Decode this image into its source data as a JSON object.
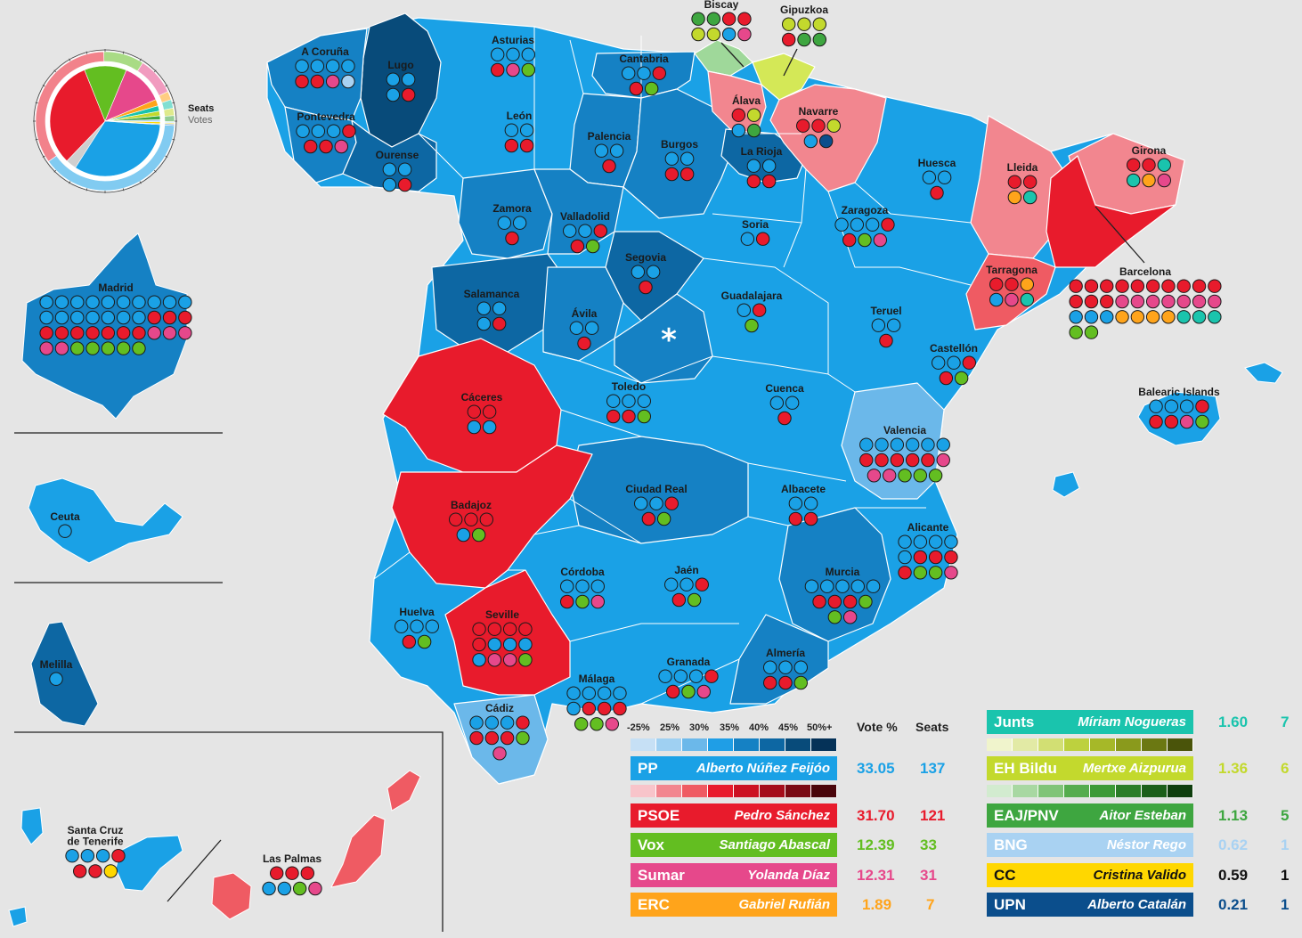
{
  "legend_text": {
    "seats": "Seats",
    "votes": "Votes",
    "vote_pct": "Vote %",
    "seats_col": "Seats",
    "asterisk": "*"
  },
  "scale_labels": [
    "-25%",
    "25%",
    "30%",
    "35%",
    "40%",
    "45%",
    "50%+"
  ],
  "colors": {
    "pp_scale": [
      "#c6e0f5",
      "#9fd0f2",
      "#6bb8ea",
      "#1f9ee6",
      "#1581c4",
      "#0d67a3",
      "#084b7a",
      "#053258"
    ],
    "psoe_scale": [
      "#f8c4ca",
      "#f2868f",
      "#ef5b63",
      "#e81b2c",
      "#cc1122",
      "#a50d1b",
      "#7a0a14",
      "#4a050b"
    ],
    "junts_scale": [
      "#f0f4cc",
      "#e2eaa5",
      "#d2df73",
      "#bdd13e",
      "#a6b828",
      "#8a9a1c",
      "#6b7812",
      "#4a540a"
    ],
    "bildu_scale": [
      "#d2ebcf",
      "#a8d8a2",
      "#80c478",
      "#55ac4e",
      "#3c9a37",
      "#2b7d28",
      "#1c5f1a",
      "#0f3e0e"
    ]
  },
  "parties": [
    {
      "abbr": "PP",
      "leader": "Alberto Núñez Feijóo",
      "vote": "33.05",
      "seats": "137",
      "color": "#1aa1e6",
      "numcolor": "#1aa1e6"
    },
    {
      "abbr": "PSOE",
      "leader": "Pedro Sánchez",
      "vote": "31.70",
      "seats": "121",
      "color": "#e81b2c",
      "numcolor": "#e81b2c"
    },
    {
      "abbr": "Vox",
      "leader": "Santiago Abascal",
      "vote": "12.39",
      "seats": "33",
      "color": "#63be21",
      "numcolor": "#63be21"
    },
    {
      "abbr": "Sumar",
      "leader": "Yolanda Díaz",
      "vote": "12.31",
      "seats": "31",
      "color": "#e6488b",
      "numcolor": "#e6488b"
    },
    {
      "abbr": "ERC",
      "leader": "Gabriel Rufián",
      "vote": "1.89",
      "seats": "7",
      "color": "#ffa41b",
      "numcolor": "#ffa41b"
    },
    {
      "abbr": "Junts",
      "leader": "Míriam Nogueras",
      "vote": "1.60",
      "seats": "7",
      "color": "#1ac4ad",
      "numcolor": "#1ac4ad"
    },
    {
      "abbr": "EH Bildu",
      "leader": "Mertxe Aizpurua",
      "vote": "1.36",
      "seats": "6",
      "color": "#c3d92d",
      "numcolor": "#c3d92d"
    },
    {
      "abbr": "EAJ/PNV",
      "leader": "Aitor Esteban",
      "vote": "1.13",
      "seats": "5",
      "color": "#3ea640",
      "numcolor": "#3ea640"
    },
    {
      "abbr": "BNG",
      "leader": "Néstor Rego",
      "vote": "0.62",
      "seats": "1",
      "color": "#a9d2f2",
      "numcolor": "#a9d2f2"
    },
    {
      "abbr": "CC",
      "leader": "Cristina Valido",
      "vote": "0.59",
      "seats": "1",
      "color": "#ffd700",
      "numcolor": "#111111"
    },
    {
      "abbr": "UPN",
      "leader": "Alberto Catalán",
      "vote": "0.21",
      "seats": "1",
      "color": "#0b4e8c",
      "numcolor": "#0b4e8c"
    }
  ],
  "seat_colors": {
    "PP": "#1aa1e6",
    "PSOE": "#e81b2c",
    "Vox": "#63be21",
    "Sumar": "#e6488b",
    "ERC": "#ffa41b",
    "Junts": "#1ac4ad",
    "Bildu": "#c3d92d",
    "PNV": "#3ea640",
    "BNG": "#a9d2f2",
    "CC": "#ffd700",
    "UPN": "#0b4e8c"
  },
  "provinces": [
    {
      "name": "A Coruña",
      "rows": [
        [
          "PP",
          "PP",
          "PP",
          "PP"
        ],
        [
          "PSOE",
          "PSOE",
          "Sumar",
          "BNG"
        ]
      ]
    },
    {
      "name": "Lugo",
      "rows": [
        [
          "PP",
          "PP"
        ],
        [
          "PP",
          "PSOE"
        ]
      ]
    },
    {
      "name": "Pontevedra",
      "rows": [
        [
          "PP",
          "PP",
          "PP",
          "PSOE"
        ],
        [
          "PSOE",
          "PSOE",
          "Sumar"
        ]
      ]
    },
    {
      "name": "Ourense",
      "rows": [
        [
          "PP",
          "PP"
        ],
        [
          "PP",
          "PSOE"
        ]
      ]
    },
    {
      "name": "Asturias",
      "rows": [
        [
          "PP",
          "PP",
          "PP"
        ],
        [
          "PSOE",
          "Sumar",
          "Vox"
        ]
      ]
    },
    {
      "name": "Cantabria",
      "rows": [
        [
          "PP",
          "PP",
          "PSOE"
        ],
        [
          "PSOE",
          "Vox"
        ]
      ]
    },
    {
      "name": "León",
      "rows": [
        [
          "PP",
          "PP"
        ],
        [
          "PSOE",
          "PSOE"
        ]
      ]
    },
    {
      "name": "Palencia",
      "rows": [
        [
          "PP",
          "PP"
        ],
        [
          "PSOE"
        ]
      ]
    },
    {
      "name": "Burgos",
      "rows": [
        [
          "PP",
          "PP"
        ],
        [
          "PSOE",
          "PSOE"
        ]
      ]
    },
    {
      "name": "La Rioja",
      "rows": [
        [
          "PP",
          "PP"
        ],
        [
          "PSOE",
          "PSOE"
        ]
      ]
    },
    {
      "name": "Zamora",
      "rows": [
        [
          "PP",
          "PP"
        ],
        [
          "PSOE"
        ]
      ]
    },
    {
      "name": "Valladolid",
      "rows": [
        [
          "PP",
          "PP",
          "PSOE"
        ],
        [
          "PSOE",
          "Vox"
        ]
      ]
    },
    {
      "name": "Soria",
      "rows": [
        [
          "PP",
          "PSOE"
        ]
      ]
    },
    {
      "name": "Segovia",
      "rows": [
        [
          "PP",
          "PP"
        ],
        [
          "PSOE"
        ]
      ]
    },
    {
      "name": "Salamanca",
      "rows": [
        [
          "PP",
          "PP"
        ],
        [
          "PP",
          "PSOE"
        ]
      ]
    },
    {
      "name": "Ávila",
      "rows": [
        [
          "PP",
          "PP"
        ],
        [
          "PSOE"
        ]
      ]
    },
    {
      "name": "Madrid",
      "rows": [
        [
          "PP",
          "PP",
          "PP",
          "PP",
          "PP",
          "PP",
          "PP",
          "PP",
          "PP",
          "PP"
        ],
        [
          "PP",
          "PP",
          "PP",
          "PP",
          "PP",
          "PP",
          "PP",
          "PSOE",
          "PSOE",
          "PSOE"
        ],
        [
          "PSOE",
          "PSOE",
          "PSOE",
          "PSOE",
          "PSOE",
          "PSOE",
          "PSOE",
          "Sumar",
          "Sumar",
          "Sumar"
        ],
        [
          "Sumar",
          "Sumar",
          "Vox",
          "Vox",
          "Vox",
          "Vox",
          "Vox"
        ]
      ]
    },
    {
      "name": "Guadalajara",
      "rows": [
        [
          "PP",
          "PSOE"
        ],
        [
          "Vox"
        ]
      ]
    },
    {
      "name": "Toledo",
      "rows": [
        [
          "PP",
          "PP",
          "PP"
        ],
        [
          "PSOE",
          "PSOE",
          "Vox"
        ]
      ]
    },
    {
      "name": "Cuenca",
      "rows": [
        [
          "PP",
          "PP"
        ],
        [
          "PSOE"
        ]
      ]
    },
    {
      "name": "Cáceres",
      "rows": [
        [
          "PSOE",
          "PSOE"
        ],
        [
          "PP",
          "PP"
        ]
      ]
    },
    {
      "name": "Badajoz",
      "rows": [
        [
          "PSOE",
          "PSOE",
          "PSOE"
        ],
        [
          "PP",
          "Vox"
        ]
      ]
    },
    {
      "name": "Ciudad Real",
      "rows": [
        [
          "PP",
          "PP",
          "PSOE"
        ],
        [
          "PSOE",
          "Vox"
        ]
      ]
    },
    {
      "name": "Albacete",
      "rows": [
        [
          "PP",
          "PP"
        ],
        [
          "PSOE",
          "PSOE"
        ]
      ]
    },
    {
      "name": "Biscay",
      "rows": [
        [
          "PNV",
          "PNV",
          "PSOE",
          "PSOE"
        ],
        [
          "Bildu",
          "Bildu",
          "PP",
          "Sumar"
        ]
      ]
    },
    {
      "name": "Gipuzkoa",
      "rows": [
        [
          "Bildu",
          "Bildu",
          "Bildu"
        ],
        [
          "PSOE",
          "PNV",
          "PNV"
        ]
      ]
    },
    {
      "name": "Álava",
      "rows": [
        [
          "PSOE",
          "Bildu"
        ],
        [
          "PP",
          "PNV"
        ]
      ]
    },
    {
      "name": "Navarre",
      "rows": [
        [
          "PSOE",
          "PSOE",
          "Bildu"
        ],
        [
          "PP",
          "UPN"
        ]
      ]
    },
    {
      "name": "Huesca",
      "rows": [
        [
          "PP",
          "PP"
        ],
        [
          "PSOE"
        ]
      ]
    },
    {
      "name": "Zaragoza",
      "rows": [
        [
          "PP",
          "PP",
          "PP",
          "PSOE"
        ],
        [
          "PSOE",
          "Vox",
          "Sumar"
        ]
      ]
    },
    {
      "name": "Teruel",
      "rows": [
        [
          "PP",
          "PP"
        ],
        [
          "PSOE"
        ]
      ]
    },
    {
      "name": "Lleida",
      "rows": [
        [
          "PSOE",
          "PSOE"
        ],
        [
          "ERC",
          "Junts"
        ]
      ]
    },
    {
      "name": "Girona",
      "rows": [
        [
          "PSOE",
          "PSOE",
          "Junts"
        ],
        [
          "Junts",
          "ERC",
          "Sumar"
        ]
      ]
    },
    {
      "name": "Tarragona",
      "rows": [
        [
          "PSOE",
          "PSOE",
          "ERC"
        ],
        [
          "PP",
          "Sumar",
          "Junts"
        ]
      ]
    },
    {
      "name": "Barcelona",
      "rows": [
        [
          "PSOE",
          "PSOE",
          "PSOE",
          "PSOE",
          "PSOE",
          "PSOE",
          "PSOE",
          "PSOE",
          "PSOE",
          "PSOE"
        ],
        [
          "PSOE",
          "PSOE",
          "PSOE",
          "Sumar",
          "Sumar",
          "Sumar",
          "Sumar",
          "Sumar",
          "Sumar",
          "Sumar"
        ],
        [
          "PP",
          "PP",
          "PP",
          "ERC",
          "ERC",
          "ERC",
          "ERC",
          "Junts",
          "Junts",
          "Junts"
        ],
        [
          "Vox",
          "Vox"
        ]
      ]
    },
    {
      "name": "Castellón",
      "rows": [
        [
          "PP",
          "PP",
          "PSOE"
        ],
        [
          "PSOE",
          "Vox"
        ]
      ]
    },
    {
      "name": "Valencia",
      "rows": [
        [
          "PP",
          "PP",
          "PP",
          "PP",
          "PP",
          "PP"
        ],
        [
          "PSOE",
          "PSOE",
          "PSOE",
          "PSOE",
          "PSOE",
          "Sumar"
        ],
        [
          "Sumar",
          "Sumar",
          "Vox",
          "Vox",
          "Vox"
        ]
      ]
    },
    {
      "name": "Balearic Islands",
      "rows": [
        [
          "PP",
          "PP",
          "PP",
          "PSOE"
        ],
        [
          "PSOE",
          "PSOE",
          "Sumar",
          "Vox"
        ]
      ]
    },
    {
      "name": "Alicante",
      "rows": [
        [
          "PP",
          "PP",
          "PP",
          "PP"
        ],
        [
          "PP",
          "PSOE",
          "PSOE",
          "PSOE"
        ],
        [
          "PSOE",
          "Vox",
          "Vox",
          "Sumar"
        ]
      ]
    },
    {
      "name": "Murcia",
      "rows": [
        [
          "PP",
          "PP",
          "PP",
          "PP",
          "PP"
        ],
        [
          "PSOE",
          "PSOE",
          "PSOE",
          "Vox"
        ],
        [
          "Vox",
          "Sumar"
        ]
      ]
    },
    {
      "name": "Córdoba",
      "rows": [
        [
          "PP",
          "PP",
          "PP"
        ],
        [
          "PSOE",
          "Vox",
          "Sumar"
        ]
      ]
    },
    {
      "name": "Jaén",
      "rows": [
        [
          "PP",
          "PP",
          "PSOE"
        ],
        [
          "PSOE",
          "Vox"
        ]
      ]
    },
    {
      "name": "Huelva",
      "rows": [
        [
          "PP",
          "PP",
          "PP"
        ],
        [
          "PSOE",
          "Vox"
        ]
      ]
    },
    {
      "name": "Seville",
      "rows": [
        [
          "PSOE",
          "PSOE",
          "PSOE",
          "PSOE"
        ],
        [
          "PSOE",
          "PP",
          "PP",
          "PP"
        ],
        [
          "PP",
          "Sumar",
          "Sumar",
          "Vox"
        ]
      ]
    },
    {
      "name": "Granada",
      "rows": [
        [
          "PP",
          "PP",
          "PP",
          "PSOE"
        ],
        [
          "PSOE",
          "Vox",
          "Sumar"
        ]
      ]
    },
    {
      "name": "Almería",
      "rows": [
        [
          "PP",
          "PP",
          "PP"
        ],
        [
          "PSOE",
          "PSOE",
          "Vox"
        ]
      ]
    },
    {
      "name": "Málaga",
      "rows": [
        [
          "PP",
          "PP",
          "PP",
          "PP"
        ],
        [
          "PP",
          "PSOE",
          "PSOE",
          "PSOE"
        ],
        [
          "Vox",
          "Vox",
          "Sumar"
        ]
      ]
    },
    {
      "name": "Cádiz",
      "rows": [
        [
          "PP",
          "PP",
          "PP",
          "PSOE"
        ],
        [
          "PSOE",
          "PSOE",
          "PSOE",
          "Vox"
        ],
        [
          "Sumar"
        ]
      ]
    },
    {
      "name": "Ceuta",
      "rows": [
        [
          "PP"
        ]
      ]
    },
    {
      "name": "Melilla",
      "rows": [
        [
          "PP"
        ]
      ]
    },
    {
      "name": "Santa Cruz de Tenerife",
      "rows": [
        [
          "PP",
          "PP",
          "PP",
          "PSOE"
        ],
        [
          "PSOE",
          "PSOE",
          "CC"
        ]
      ]
    },
    {
      "name": "Las Palmas",
      "rows": [
        [
          "PSOE",
          "PSOE",
          "PSOE"
        ],
        [
          "PP",
          "PP",
          "Vox",
          "Sumar"
        ]
      ]
    }
  ]
}
